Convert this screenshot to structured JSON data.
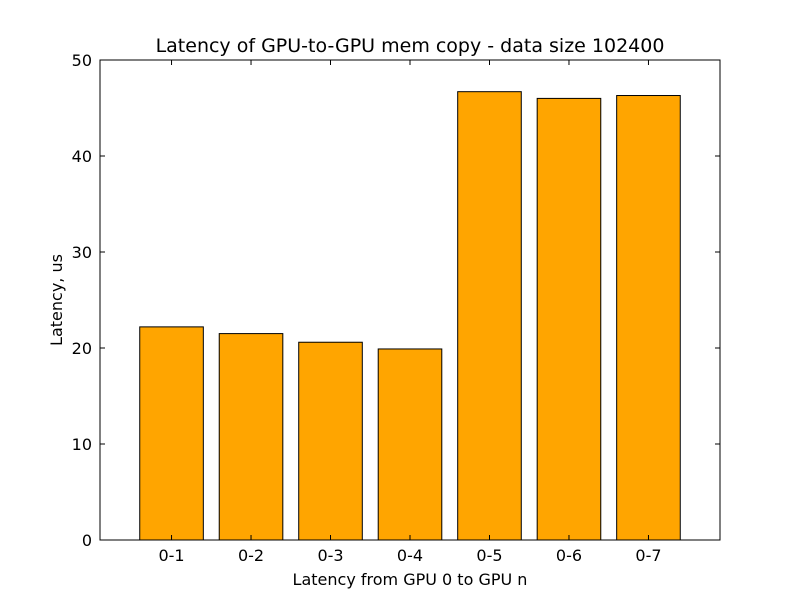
{
  "chart_data": {
    "type": "bar",
    "title": "Latency of GPU-to-GPU mem copy - data size 102400",
    "xlabel": "Latency from GPU 0 to GPU n",
    "ylabel": "Latency, us",
    "categories": [
      "0-1",
      "0-2",
      "0-3",
      "0-4",
      "0-5",
      "0-6",
      "0-7"
    ],
    "values": [
      22.2,
      21.5,
      20.6,
      19.9,
      46.7,
      46.0,
      46.3
    ],
    "ylim": [
      0,
      50
    ],
    "yticks": [
      0,
      10,
      20,
      30,
      40,
      50
    ],
    "grid": false,
    "legend": "none",
    "bar_color": "#ffa500",
    "edge_color": "#000000"
  }
}
